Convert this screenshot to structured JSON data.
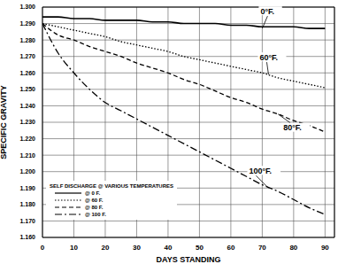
{
  "chart_data": {
    "type": "line",
    "x_label": "DAYS STANDING",
    "y_label": "SPECIFIC GRAVITY",
    "legend_title": "SELF DISCHARGE @ VARIOUS TEMPERATURES",
    "legend": "lower left",
    "grid": true,
    "x": [
      0,
      5,
      10,
      15,
      20,
      25,
      30,
      35,
      40,
      45,
      50,
      55,
      60,
      65,
      70,
      75,
      80,
      85,
      90
    ],
    "series": [
      {
        "name": "@ 0 F.",
        "color": "#000000",
        "line_style": "solid",
        "values": [
          1.294,
          1.294,
          1.293,
          1.293,
          1.292,
          1.292,
          1.292,
          1.291,
          1.291,
          1.29,
          1.29,
          1.29,
          1.289,
          1.289,
          1.288,
          1.288,
          1.288,
          1.287,
          1.287
        ]
      },
      {
        "name": "@ 60 F.",
        "color": "#000000",
        "line_style": "dotted",
        "values": [
          1.29,
          1.288,
          1.286,
          1.284,
          1.282,
          1.279,
          1.277,
          1.275,
          1.273,
          1.27,
          1.268,
          1.266,
          1.264,
          1.262,
          1.26,
          1.257,
          1.255,
          1.253,
          1.251
        ]
      },
      {
        "name": "@ 80 F.",
        "color": "#000000",
        "line_style": "dashed",
        "values": [
          1.29,
          1.283,
          1.28,
          1.276,
          1.273,
          1.27,
          1.266,
          1.263,
          1.26,
          1.256,
          1.253,
          1.249,
          1.245,
          1.242,
          1.238,
          1.235,
          1.231,
          1.228,
          1.224
        ]
      },
      {
        "name": "@ 100 F.",
        "color": "#000000",
        "line_style": "dashdot",
        "values": [
          1.29,
          1.272,
          1.26,
          1.25,
          1.242,
          1.237,
          1.232,
          1.227,
          1.222,
          1.217,
          1.212,
          1.207,
          1.202,
          1.197,
          1.192,
          1.188,
          1.183,
          1.178,
          1.174
        ]
      }
    ],
    "annotations": [
      {
        "text": "0°F.",
        "x": 70,
        "y": 1.287
      },
      {
        "text": "60°F.",
        "x": 72,
        "y": 1.259
      },
      {
        "text": "80°F.",
        "x": 75,
        "y": 1.235
      },
      {
        "text": "100°F.",
        "x": 72,
        "y": 1.19
      }
    ],
    "xlim": [
      0,
      93
    ],
    "xticks": [
      0,
      10,
      20,
      30,
      40,
      50,
      60,
      70,
      80,
      90
    ],
    "ylim": [
      1.16,
      1.3
    ],
    "yticks": [
      {
        "value": 1.16,
        "label": "1.160"
      },
      {
        "value": 1.17,
        "label": "1.170"
      },
      {
        "value": 1.18,
        "label": "1.180"
      },
      {
        "value": 1.19,
        "label": "1.190"
      },
      {
        "value": 1.2,
        "label": "1.200"
      },
      {
        "value": 1.21,
        "label": "1.210"
      },
      {
        "value": 1.22,
        "label": "1.220"
      },
      {
        "value": 1.23,
        "label": "1.230"
      },
      {
        "value": 1.24,
        "label": "1.240"
      },
      {
        "value": 1.25,
        "label": "1.250"
      },
      {
        "value": 1.26,
        "label": "1.260"
      },
      {
        "value": 1.27,
        "label": "1.270"
      },
      {
        "value": 1.28,
        "label": "1.280"
      },
      {
        "value": 1.29,
        "label": "1.290"
      },
      {
        "value": 1.3,
        "label": "1.300"
      }
    ]
  }
}
